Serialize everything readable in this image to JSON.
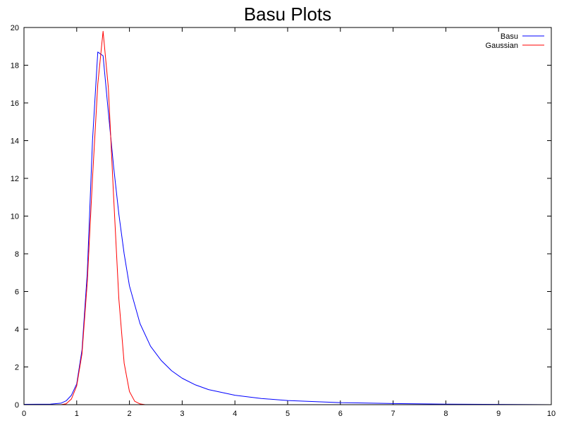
{
  "chart_data": {
    "type": "line",
    "title": "Basu Plots",
    "xlabel": "",
    "ylabel": "",
    "xlim": [
      0,
      10
    ],
    "ylim": [
      0,
      20
    ],
    "x_ticks": [
      0,
      1,
      2,
      3,
      4,
      5,
      6,
      7,
      8,
      9,
      10
    ],
    "y_ticks": [
      0,
      2,
      4,
      6,
      8,
      10,
      12,
      14,
      16,
      18,
      20
    ],
    "grid": false,
    "legend_position": "top-right",
    "series": [
      {
        "name": "Basu",
        "color": "#0000ff",
        "x": [
          0,
          0.5,
          0.7,
          0.8,
          0.9,
          1.0,
          1.1,
          1.2,
          1.3,
          1.4,
          1.5,
          1.6,
          1.7,
          1.8,
          1.9,
          2.0,
          2.2,
          2.4,
          2.6,
          2.8,
          3.0,
          3.25,
          3.5,
          4.0,
          4.5,
          5.0,
          6.0,
          7.0,
          8.0,
          10.0
        ],
        "y": [
          0.02,
          0.03,
          0.08,
          0.2,
          0.5,
          1.1,
          2.9,
          7.0,
          14.0,
          18.7,
          18.5,
          15.5,
          12.6,
          10.1,
          8.0,
          6.3,
          4.3,
          3.1,
          2.35,
          1.8,
          1.4,
          1.05,
          0.8,
          0.5,
          0.33,
          0.22,
          0.11,
          0.06,
          0.03,
          0.0
        ]
      },
      {
        "name": "Gaussian",
        "color": "#ff0000",
        "x": [
          0,
          0.7,
          0.8,
          0.9,
          1.0,
          1.1,
          1.2,
          1.3,
          1.4,
          1.5,
          1.6,
          1.7,
          1.8,
          1.9,
          2.0,
          2.1,
          2.2,
          2.3,
          10.0
        ],
        "y": [
          0.0,
          0.0,
          0.05,
          0.3,
          1.0,
          2.7,
          6.5,
          12.0,
          17.0,
          19.8,
          16.8,
          11.0,
          5.6,
          2.2,
          0.7,
          0.18,
          0.04,
          0.0,
          0.0
        ]
      }
    ]
  }
}
